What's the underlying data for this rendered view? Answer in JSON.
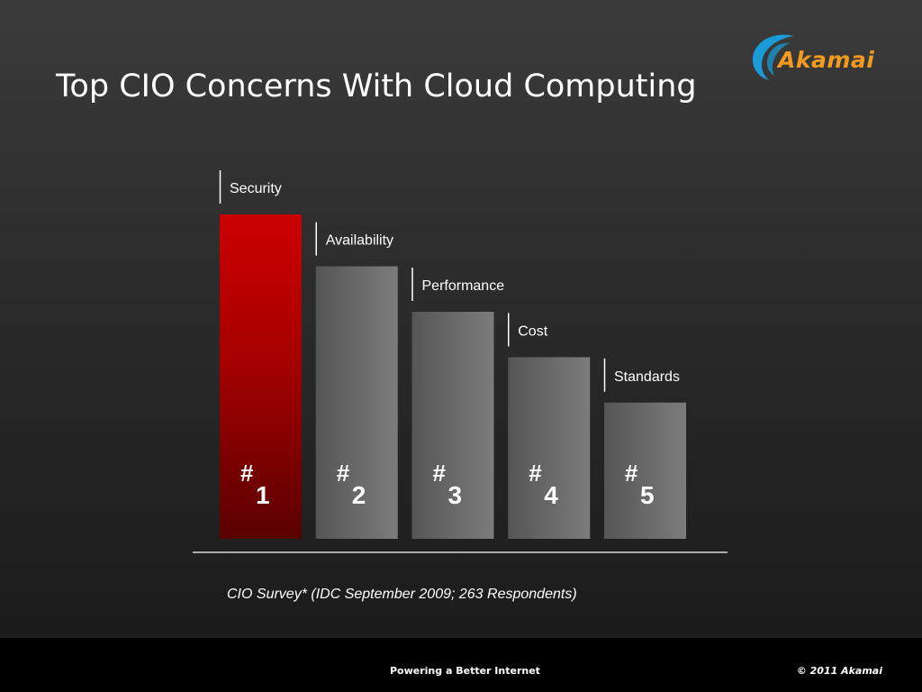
{
  "slide": {
    "title": "Top CIO Concerns With Cloud Computing",
    "source_note": "CIO Survey* (IDC September 2009; 263 Respondents)"
  },
  "logo": {
    "text": "Akamai",
    "text_color": "#f39a1f",
    "swoosh_color": "#1a9ad6"
  },
  "footer": {
    "tagline": "Powering a Better Internet",
    "copyright": "© 2011 Akamai"
  },
  "colors": {
    "highlight_bar": "#c00000",
    "default_bar": "#6e6e6e"
  },
  "chart_data": {
    "type": "bar",
    "title": "Top CIO Concerns With Cloud Computing",
    "categories": [
      "Security",
      "Availability",
      "Performance",
      "Cost",
      "Standards"
    ],
    "values": [
      5,
      4.2,
      3.5,
      2.8,
      2.1
    ],
    "rank_symbol": "#",
    "ranks": [
      "1",
      "2",
      "3",
      "4",
      "5"
    ],
    "highlight_index": 0,
    "xlabel": "",
    "ylabel": "",
    "ylim": [
      0,
      5
    ],
    "grid": false,
    "legend": "none"
  }
}
